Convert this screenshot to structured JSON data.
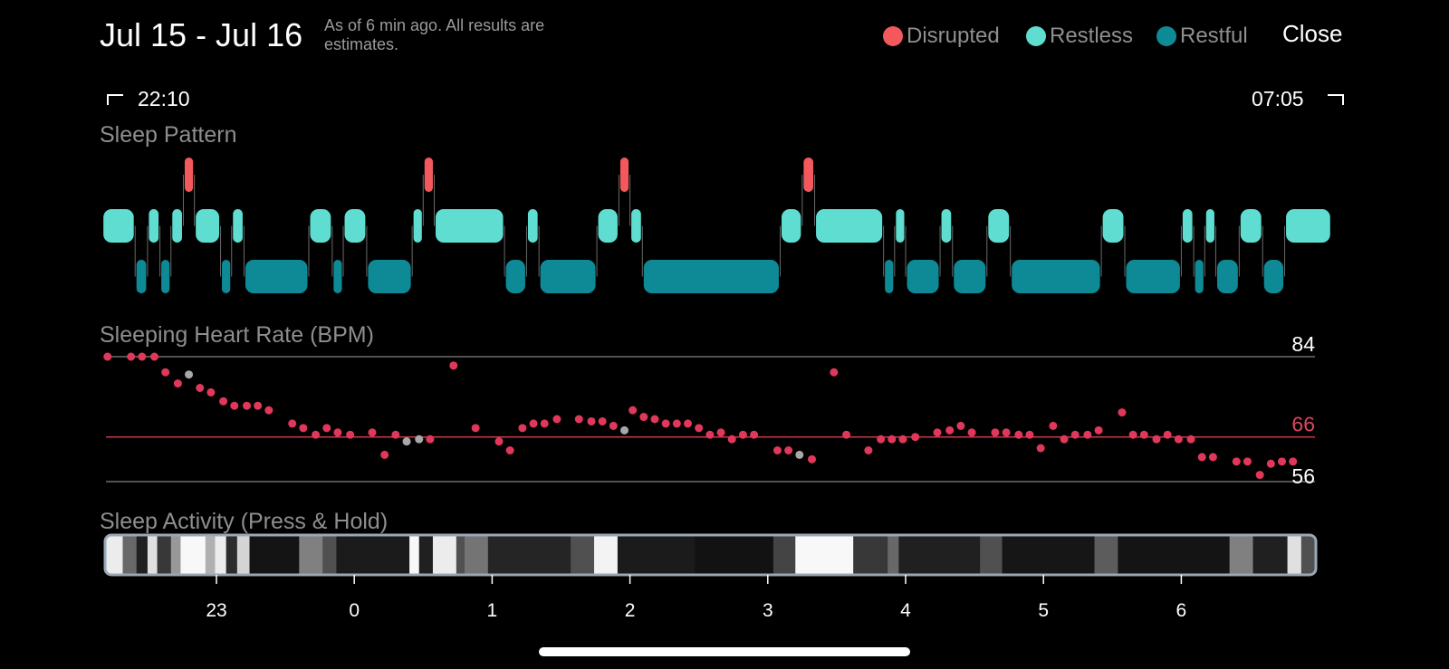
{
  "header": {
    "title": "Jul 15 - Jul 16",
    "note": "As of 6 min ago. All results are estimates.",
    "close_label": "Close"
  },
  "legend": [
    {
      "label": "Disrupted",
      "color": "#F2585C"
    },
    {
      "label": "Restless",
      "color": "#5EDDD0"
    },
    {
      "label": "Restful",
      "color": "#0E8A96"
    }
  ],
  "time_range": {
    "start": "22:10",
    "end": "07:05"
  },
  "sections": {
    "sleep_pattern": "Sleep Pattern",
    "heart_rate": "Sleeping Heart Rate (BPM)",
    "activity": "Sleep Activity (Press & Hold)"
  },
  "chart_data": [
    {
      "type": "timeline",
      "title": "Sleep Pattern",
      "x_unit": "hours",
      "levels": [
        "Disrupted",
        "Restless",
        "Restful"
      ],
      "segments": [
        [
          "Restless",
          22.17,
          22.41
        ],
        [
          "Restful",
          22.41,
          22.5
        ],
        [
          "Restless",
          22.5,
          22.59
        ],
        [
          "Restful",
          22.59,
          22.67
        ],
        [
          "Restless",
          22.67,
          22.76
        ],
        [
          "Disrupted",
          22.76,
          22.84
        ],
        [
          "Restless",
          22.84,
          23.03
        ],
        [
          "Restful",
          23.03,
          23.11
        ],
        [
          "Restless",
          23.11,
          23.2
        ],
        [
          "Restful",
          23.2,
          23.67
        ],
        [
          "Restless",
          23.67,
          23.84
        ],
        [
          "Restful",
          23.84,
          23.92
        ],
        [
          "Restless",
          23.92,
          24.09
        ],
        [
          "Restful",
          24.09,
          24.42
        ],
        [
          "Restless",
          24.42,
          24.5
        ],
        [
          "Disrupted",
          24.5,
          24.58
        ],
        [
          "Restless",
          24.58,
          25.09
        ],
        [
          "Restful",
          25.09,
          25.25
        ],
        [
          "Restless",
          25.25,
          25.34
        ],
        [
          "Restful",
          25.34,
          25.76
        ],
        [
          "Restless",
          25.76,
          25.92
        ],
        [
          "Disrupted",
          25.92,
          26.0
        ],
        [
          "Restless",
          26.0,
          26.09
        ],
        [
          "Restful",
          26.09,
          27.09
        ],
        [
          "Restless",
          27.09,
          27.25
        ],
        [
          "Disrupted",
          27.25,
          27.34
        ],
        [
          "Restless",
          27.34,
          27.84
        ],
        [
          "Restful",
          27.84,
          27.92
        ],
        [
          "Restless",
          27.92,
          28.0
        ],
        [
          "Restful",
          28.0,
          28.25
        ],
        [
          "Restless",
          28.25,
          28.34
        ],
        [
          "Restful",
          28.34,
          28.59
        ],
        [
          "Restless",
          28.59,
          28.76
        ],
        [
          "Restful",
          28.76,
          29.42
        ],
        [
          "Restless",
          29.42,
          29.59
        ],
        [
          "Restful",
          29.59,
          30.0
        ],
        [
          "Restless",
          30.0,
          30.09
        ],
        [
          "Restful",
          30.09,
          30.17
        ],
        [
          "Restless",
          30.17,
          30.25
        ],
        [
          "Restful",
          30.25,
          30.42
        ],
        [
          "Restless",
          30.42,
          30.59
        ],
        [
          "Restful",
          30.59,
          30.75
        ],
        [
          "Restless",
          30.75,
          31.09
        ]
      ]
    },
    {
      "type": "scatter",
      "title": "Sleeping Heart Rate (BPM)",
      "x_unit": "hours",
      "ylim": [
        56,
        84
      ],
      "reference_lines": [
        84,
        66,
        56
      ],
      "average": 66,
      "points": [
        [
          22.21,
          84
        ],
        [
          22.38,
          84
        ],
        [
          22.46,
          84
        ],
        [
          22.55,
          84
        ],
        [
          22.63,
          80.5
        ],
        [
          22.72,
          78
        ],
        [
          22.8,
          80,
          "gray"
        ],
        [
          22.88,
          77
        ],
        [
          22.96,
          76
        ],
        [
          23.05,
          74
        ],
        [
          23.13,
          73
        ],
        [
          23.22,
          73
        ],
        [
          23.3,
          73
        ],
        [
          23.38,
          72
        ],
        [
          23.55,
          69
        ],
        [
          23.63,
          68
        ],
        [
          23.72,
          66.5
        ],
        [
          23.8,
          68
        ],
        [
          23.88,
          67
        ],
        [
          23.97,
          66.5
        ],
        [
          24.13,
          67
        ],
        [
          24.22,
          62
        ],
        [
          24.3,
          66.5
        ],
        [
          24.38,
          65,
          "gray"
        ],
        [
          24.47,
          65.5,
          "gray"
        ],
        [
          24.55,
          65.5
        ],
        [
          24.72,
          82
        ],
        [
          24.88,
          68
        ],
        [
          25.05,
          65
        ],
        [
          25.13,
          63
        ],
        [
          25.22,
          68
        ],
        [
          25.3,
          69
        ],
        [
          25.38,
          69
        ],
        [
          25.47,
          70
        ],
        [
          25.63,
          70
        ],
        [
          25.72,
          69.5
        ],
        [
          25.8,
          69.5
        ],
        [
          25.88,
          68.5
        ],
        [
          25.96,
          67.5,
          "gray"
        ],
        [
          26.02,
          72
        ],
        [
          26.1,
          70.5
        ],
        [
          26.18,
          70
        ],
        [
          26.26,
          69
        ],
        [
          26.34,
          69
        ],
        [
          26.42,
          69
        ],
        [
          26.5,
          68
        ],
        [
          26.58,
          66.5
        ],
        [
          26.66,
          67
        ],
        [
          26.74,
          65.5
        ],
        [
          26.82,
          66.5
        ],
        [
          26.9,
          66.5
        ],
        [
          27.07,
          63
        ],
        [
          27.15,
          63
        ],
        [
          27.23,
          62,
          "gray"
        ],
        [
          27.32,
          61
        ],
        [
          27.48,
          80.5
        ],
        [
          27.57,
          66.5
        ],
        [
          27.73,
          63
        ],
        [
          27.82,
          65.5
        ],
        [
          27.9,
          65.5
        ],
        [
          27.98,
          65.5
        ],
        [
          28.07,
          66
        ],
        [
          28.23,
          67
        ],
        [
          28.32,
          67.5
        ],
        [
          28.4,
          68.5
        ],
        [
          28.48,
          67
        ],
        [
          28.65,
          67
        ],
        [
          28.73,
          67
        ],
        [
          28.82,
          66.5
        ],
        [
          28.9,
          66.5
        ],
        [
          28.98,
          63.5
        ],
        [
          29.07,
          68.5
        ],
        [
          29.15,
          65.5
        ],
        [
          29.23,
          66.5
        ],
        [
          29.32,
          66.5
        ],
        [
          29.4,
          67.5
        ],
        [
          29.57,
          71.5
        ],
        [
          29.65,
          66.5
        ],
        [
          29.73,
          66.5
        ],
        [
          29.82,
          65.5
        ],
        [
          29.9,
          66.5
        ],
        [
          29.98,
          65.5
        ],
        [
          30.07,
          65.5
        ],
        [
          30.15,
          61.5
        ],
        [
          30.23,
          61.5
        ],
        [
          30.4,
          60.5
        ],
        [
          30.48,
          60.5
        ],
        [
          30.57,
          57.5
        ],
        [
          30.65,
          60
        ],
        [
          30.73,
          60.5
        ],
        [
          30.81,
          60.5
        ]
      ]
    },
    {
      "type": "heatmap",
      "title": "Sleep Activity (Press & Hold)",
      "x_unit": "hours",
      "xlim": [
        22.17,
        31.08
      ],
      "ticks": [
        {
          "value": 23,
          "label": "23"
        },
        {
          "value": 24,
          "label": "0"
        },
        {
          "value": 25,
          "label": "1"
        },
        {
          "value": 26,
          "label": "2"
        },
        {
          "value": 27,
          "label": "3"
        },
        {
          "value": 28,
          "label": "4"
        },
        {
          "value": 29,
          "label": "5"
        },
        {
          "value": 30,
          "label": "6"
        }
      ],
      "cells": [
        [
          22.17,
          22.32,
          0.95
        ],
        [
          22.32,
          22.42,
          0.4
        ],
        [
          22.42,
          22.5,
          0.1
        ],
        [
          22.5,
          22.57,
          0.9
        ],
        [
          22.57,
          22.67,
          0.2
        ],
        [
          22.67,
          22.74,
          0.6
        ],
        [
          22.74,
          22.92,
          1.0
        ],
        [
          22.92,
          22.99,
          0.7
        ],
        [
          22.99,
          23.07,
          0.95
        ],
        [
          23.07,
          23.15,
          0.15
        ],
        [
          23.15,
          23.24,
          0.85
        ],
        [
          23.24,
          23.6,
          0.05
        ],
        [
          23.6,
          23.77,
          0.5
        ],
        [
          23.77,
          23.87,
          0.3
        ],
        [
          23.87,
          24.4,
          0.08
        ],
        [
          24.4,
          24.47,
          1.0
        ],
        [
          24.47,
          24.57,
          0.1
        ],
        [
          24.57,
          24.74,
          0.95
        ],
        [
          24.74,
          24.8,
          0.3
        ],
        [
          24.8,
          24.97,
          0.45
        ],
        [
          24.97,
          25.57,
          0.12
        ],
        [
          25.57,
          25.74,
          0.3
        ],
        [
          25.74,
          25.91,
          0.98
        ],
        [
          25.91,
          26.47,
          0.08
        ],
        [
          26.47,
          27.04,
          0.04
        ],
        [
          27.04,
          27.2,
          0.25
        ],
        [
          27.2,
          27.62,
          1.0
        ],
        [
          27.62,
          27.87,
          0.2
        ],
        [
          27.87,
          27.95,
          0.4
        ],
        [
          27.95,
          28.54,
          0.1
        ],
        [
          28.54,
          28.7,
          0.3
        ],
        [
          28.7,
          29.37,
          0.06
        ],
        [
          29.37,
          29.54,
          0.35
        ],
        [
          29.54,
          30.35,
          0.05
        ],
        [
          30.35,
          30.52,
          0.5
        ],
        [
          30.52,
          30.77,
          0.1
        ],
        [
          30.77,
          30.87,
          0.9
        ],
        [
          30.87,
          31.08,
          0.3
        ]
      ]
    }
  ]
}
